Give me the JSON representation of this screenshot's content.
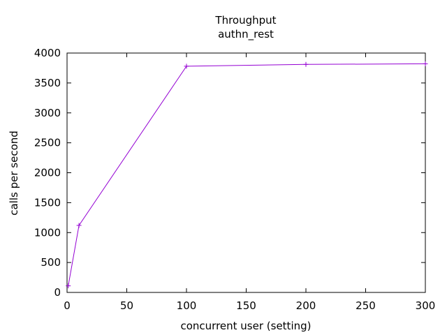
{
  "chart_data": {
    "type": "line",
    "title": "Throughput",
    "subtitle": "authn_rest",
    "xlabel": "concurrent user (setting)",
    "ylabel": "calls per second",
    "xlim": [
      0,
      300
    ],
    "ylim": [
      0,
      4000
    ],
    "xticks": [
      0,
      50,
      100,
      150,
      200,
      250,
      300
    ],
    "yticks": [
      0,
      500,
      1000,
      1500,
      2000,
      2500,
      3000,
      3500,
      4000
    ],
    "grid": false,
    "legend": "none",
    "series": [
      {
        "color": "#9400d3",
        "marker": "plus",
        "points": [
          {
            "x": 1,
            "y": 110
          },
          {
            "x": 10,
            "y": 1120
          },
          {
            "x": 100,
            "y": 3780
          },
          {
            "x": 200,
            "y": 3810
          },
          {
            "x": 300,
            "y": 3820
          }
        ]
      }
    ]
  }
}
